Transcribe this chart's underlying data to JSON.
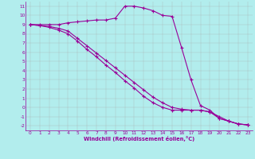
{
  "xlabel": "Windchill (Refroidissement éolien,°C)",
  "bg_color": "#b2eded",
  "grid_color": "#aaaaaa",
  "line_color": "#990099",
  "x_values": [
    0,
    1,
    2,
    3,
    4,
    5,
    6,
    7,
    8,
    9,
    10,
    11,
    12,
    13,
    14,
    15,
    16,
    17,
    18,
    19,
    20,
    21,
    22,
    23
  ],
  "curve1": [
    9.0,
    9.0,
    9.0,
    9.0,
    9.2,
    9.3,
    9.4,
    9.5,
    9.5,
    9.7,
    11.0,
    11.0,
    10.8,
    10.5,
    10.0,
    9.9,
    6.5,
    3.0,
    0.2,
    -0.3,
    -1.2,
    -1.5,
    -1.8,
    -1.9
  ],
  "curve2": [
    9.0,
    8.9,
    8.8,
    8.6,
    8.3,
    7.5,
    6.7,
    5.9,
    5.1,
    4.3,
    3.5,
    2.7,
    1.9,
    1.1,
    0.5,
    0.0,
    -0.2,
    -0.3,
    -0.3,
    -0.5,
    -1.0,
    -1.5,
    -1.8,
    -1.9
  ],
  "curve3": [
    9.0,
    8.9,
    8.7,
    8.4,
    8.0,
    7.2,
    6.3,
    5.5,
    4.6,
    3.8,
    2.9,
    2.1,
    1.2,
    0.5,
    0.0,
    -0.3,
    -0.3,
    -0.3,
    -0.3,
    -0.5,
    -1.2,
    -1.5,
    -1.8,
    -1.9
  ],
  "xlim": [
    -0.5,
    23.5
  ],
  "ylim": [
    -2.5,
    11.5
  ],
  "yticks": [
    -2,
    -1,
    0,
    1,
    2,
    3,
    4,
    5,
    6,
    7,
    8,
    9,
    10,
    11
  ],
  "xticks": [
    0,
    1,
    2,
    3,
    4,
    5,
    6,
    7,
    8,
    9,
    10,
    11,
    12,
    13,
    14,
    15,
    16,
    17,
    18,
    19,
    20,
    21,
    22,
    23
  ]
}
